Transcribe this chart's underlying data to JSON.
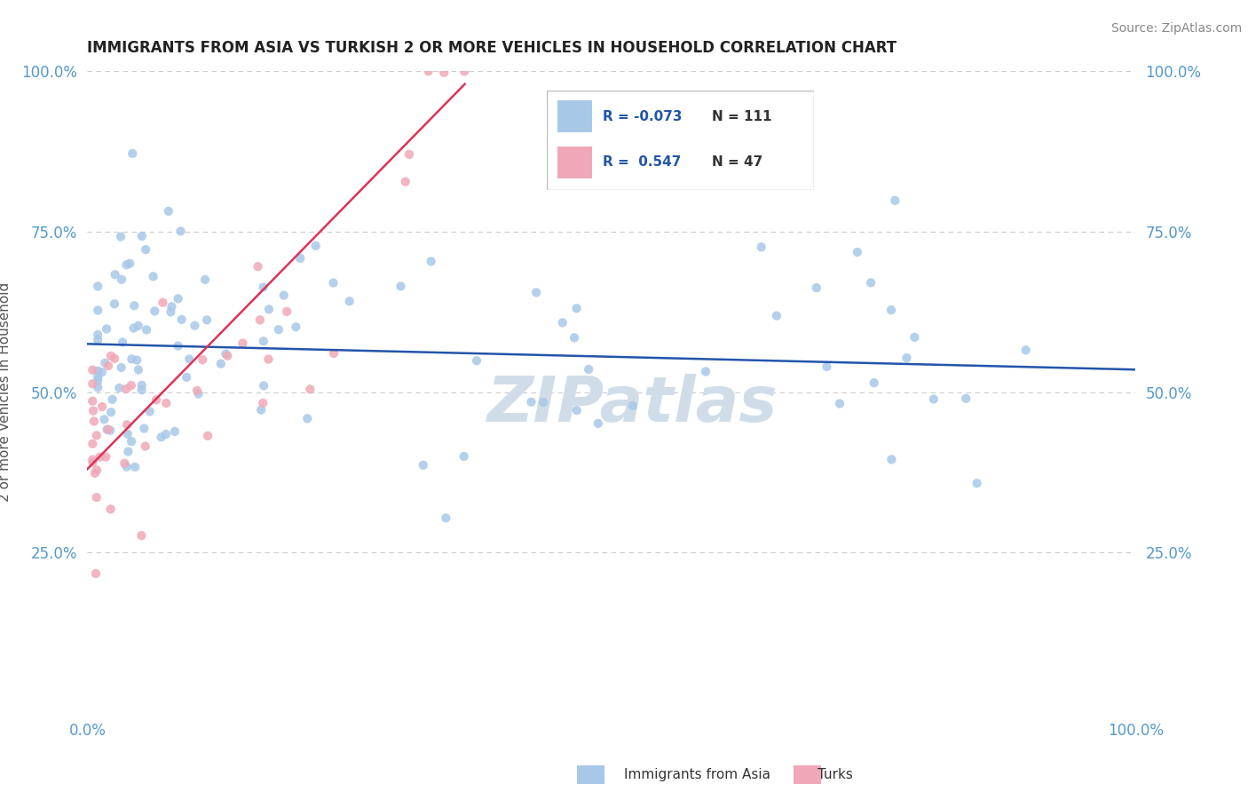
{
  "title": "IMMIGRANTS FROM ASIA VS TURKISH 2 OR MORE VEHICLES IN HOUSEHOLD CORRELATION CHART",
  "source": "Source: ZipAtlas.com",
  "ylabel": "2 or more Vehicles in Household",
  "xlim": [
    0.0,
    1.0
  ],
  "ylim": [
    0.0,
    1.0
  ],
  "ytick_labels": [
    "25.0%",
    "50.0%",
    "75.0%",
    "100.0%"
  ],
  "ytick_positions": [
    0.25,
    0.5,
    0.75,
    1.0
  ],
  "legend_blue_label": "Immigrants from Asia",
  "legend_pink_label": "Turks",
  "r_blue": -0.073,
  "n_blue": 111,
  "r_pink": 0.547,
  "n_pink": 47,
  "blue_color": "#a8c8e8",
  "pink_color": "#f0a8b8",
  "blue_line_color": "#2255aa",
  "pink_line_color": "#dd3355",
  "title_color": "#222222",
  "source_color": "#888888",
  "tick_color": "#5599cc",
  "ylabel_color": "#555555",
  "grid_color": "#cccccc",
  "watermark_color": "#d0dde8",
  "blue_line_start_y": 0.575,
  "blue_line_end_y": 0.535,
  "pink_line_start_x": 0.0,
  "pink_line_start_y": 0.38,
  "pink_line_end_x": 0.36,
  "pink_line_end_y": 0.98
}
